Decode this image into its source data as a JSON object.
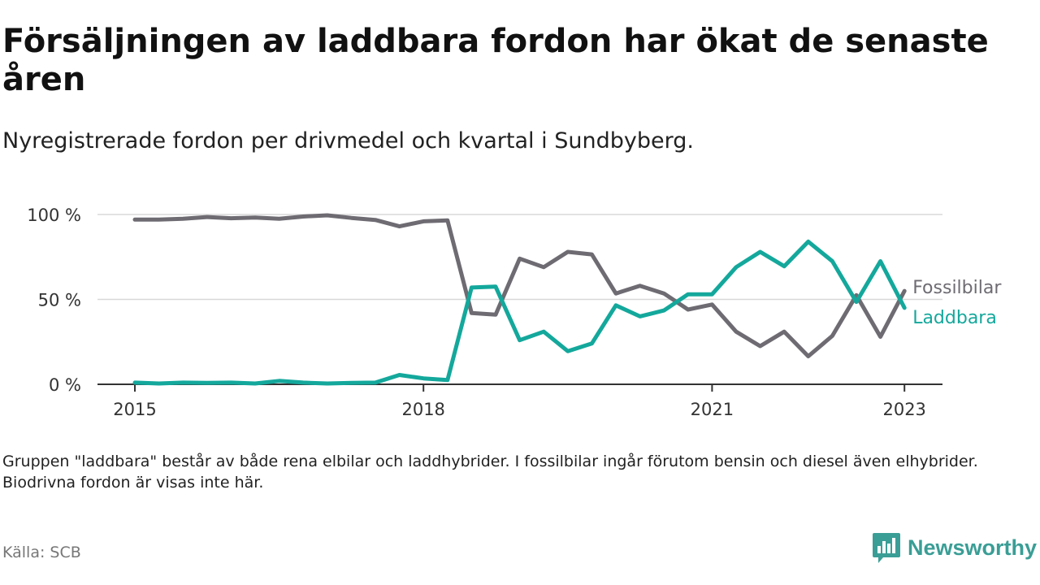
{
  "title": "Försäljningen av laddbara fordon har ökat de senaste åren",
  "subtitle": "Nyregistrerade fordon per drivmedel och kvartal i Sundbyberg.",
  "note": "Gruppen \"laddbara\" består av både rena elbilar och laddhybrider. I fossilbilar ingår förutom bensin och diesel även elhybrider. Biodrivna fordon är visas inte här.",
  "source": "Källa: SCB",
  "brand": "Newsworthy",
  "colors": {
    "fossil": "#6e6b72",
    "laddbara": "#14a89c",
    "grid": "#d8d8d8",
    "axis": "#333333",
    "brand": "#3a9e96"
  },
  "chart_data": {
    "type": "line",
    "title": "Försäljningen av laddbara fordon har ökat de senaste åren",
    "xlabel": "",
    "ylabel": "",
    "ylim": [
      0,
      100
    ],
    "x_start": 2015.0,
    "x_step": 0.25,
    "xticks": [
      2015,
      2018,
      2021,
      2023
    ],
    "xtick_labels": [
      "2015",
      "2018",
      "2021",
      "2023"
    ],
    "yticks": [
      0,
      50,
      100
    ],
    "ytick_labels": [
      "0 %",
      "50 %",
      "100 %"
    ],
    "series": [
      {
        "name": "Fossilbilar",
        "key": "fossil",
        "values": [
          97,
          97,
          97.5,
          98.5,
          97.8,
          98.2,
          97.5,
          98.8,
          99.5,
          98,
          96.8,
          93,
          96,
          96.5,
          42,
          41,
          74,
          69,
          78,
          76.5,
          53.5,
          58,
          53.5,
          44,
          47,
          31,
          22.5,
          31,
          16.5,
          28.5,
          52.5,
          28,
          55
        ]
      },
      {
        "name": "Laddbara",
        "key": "laddbara",
        "values": [
          1,
          0.5,
          1,
          0.8,
          1,
          0.5,
          2,
          1,
          0.5,
          0.8,
          1,
          5.5,
          3.5,
          2.5,
          57,
          57.5,
          26,
          31,
          19.5,
          24,
          46.5,
          40,
          43.5,
          53,
          53,
          69,
          78,
          69.5,
          84,
          72.5,
          48.5,
          72.5,
          45
        ]
      }
    ]
  }
}
